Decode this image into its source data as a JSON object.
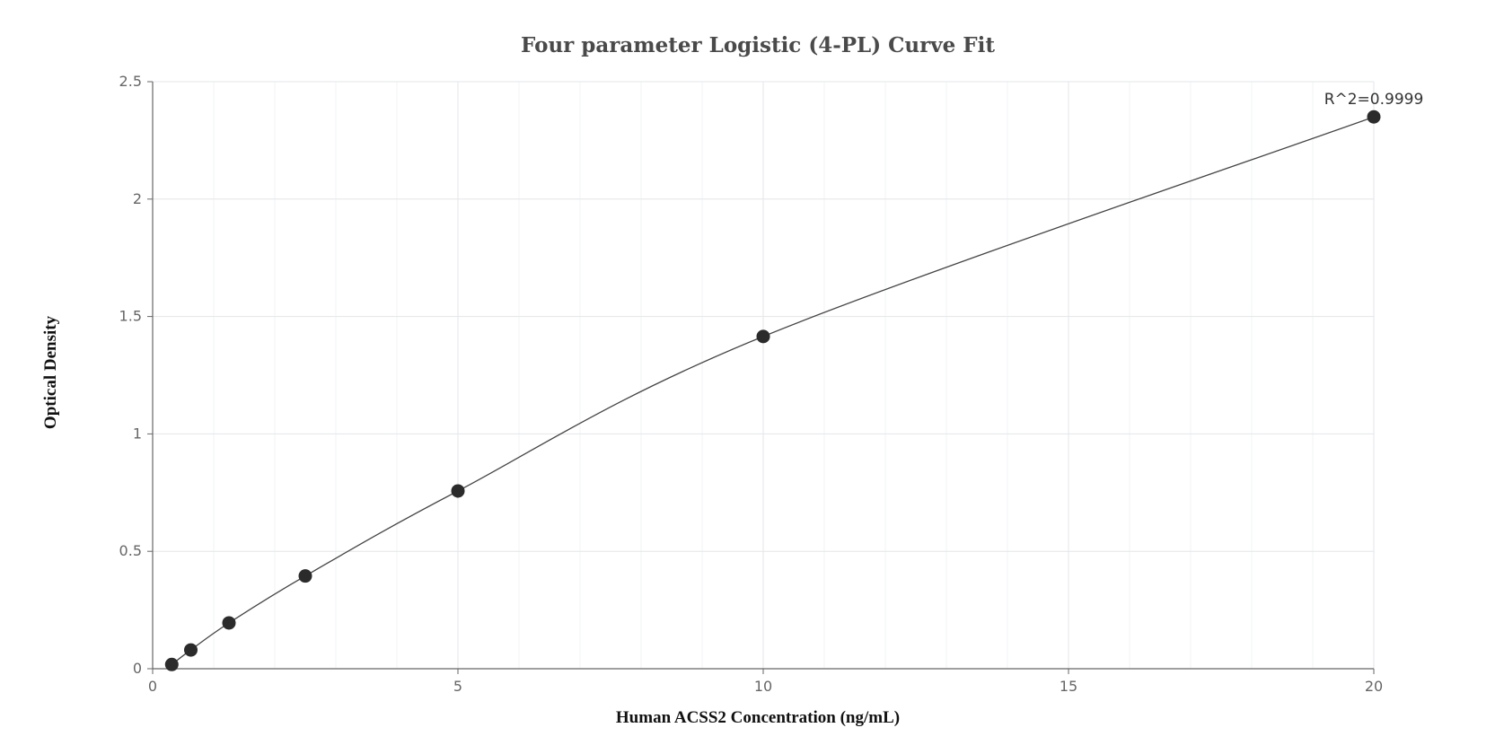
{
  "chart_data": {
    "type": "scatter",
    "title": "Four parameter Logistic (4-PL) Curve Fit",
    "xlabel": "Human ACSS2 Concentration (ng/mL)",
    "ylabel": "Optical Density",
    "xlim": [
      0,
      20
    ],
    "ylim": [
      0,
      2.5
    ],
    "xticks": [
      0,
      5,
      10,
      15,
      20
    ],
    "yticks": [
      0,
      0.5,
      1,
      1.5,
      2,
      2.5
    ],
    "x_tick_labels": [
      "0",
      "5",
      "10",
      "15",
      "20"
    ],
    "y_tick_labels": [
      "0",
      "0.5",
      "1",
      "1.5",
      "2",
      "2.5"
    ],
    "grid": true,
    "series": [
      {
        "x": [
          0.313,
          0.625,
          1.25,
          2.5,
          5,
          10,
          20
        ],
        "values": [
          0.018,
          0.08,
          0.195,
          0.395,
          0.757,
          1.415,
          2.35
        ],
        "fit": "4-PL"
      }
    ],
    "annotations": [
      {
        "text": "R^2=0.9999",
        "x": 20,
        "y": 2.35
      }
    ]
  }
}
